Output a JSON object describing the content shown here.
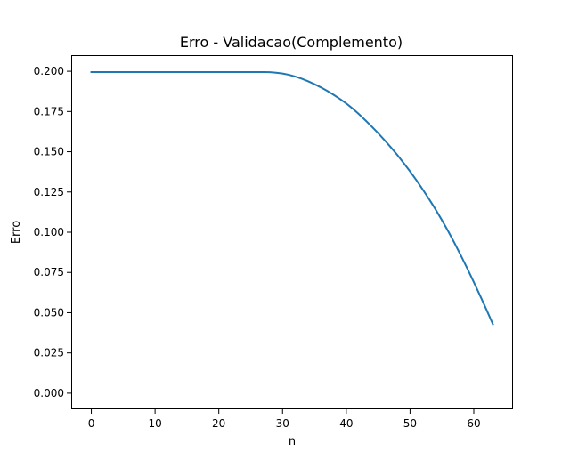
{
  "chart_data": {
    "type": "line",
    "title": "Erro - Validacao(Complemento)",
    "xlabel": "n",
    "ylabel": "Erro",
    "xlim": [
      -3.15,
      66.15
    ],
    "ylim": [
      -0.01,
      0.21
    ],
    "xticks": [
      0,
      10,
      20,
      30,
      40,
      50,
      60
    ],
    "xtick_labels": [
      "0",
      "10",
      "20",
      "30",
      "40",
      "50",
      "60"
    ],
    "yticks": [
      0.0,
      0.025,
      0.05,
      0.075,
      0.1,
      0.125,
      0.15,
      0.175,
      0.2
    ],
    "ytick_labels": [
      "0.000",
      "0.025",
      "0.050",
      "0.075",
      "0.100",
      "0.125",
      "0.150",
      "0.175",
      "0.200"
    ],
    "grid": false,
    "series": [
      {
        "color": "#1f77b4",
        "x": [
          0,
          5,
          10,
          15,
          20,
          25,
          27,
          28,
          29,
          30,
          31,
          32,
          33,
          34,
          35,
          36,
          37,
          38,
          39,
          40,
          41,
          42,
          43,
          44,
          45,
          46,
          47,
          48,
          49,
          50,
          51,
          52,
          53,
          54,
          55,
          56,
          57,
          58,
          59,
          60,
          61,
          62,
          63
        ],
        "y": [
          0.1995,
          0.1995,
          0.1995,
          0.1995,
          0.1995,
          0.1995,
          0.1995,
          0.1994,
          0.1991,
          0.1986,
          0.1978,
          0.1967,
          0.1954,
          0.1938,
          0.192,
          0.19,
          0.1878,
          0.1854,
          0.1828,
          0.18,
          0.1768,
          0.1733,
          0.1695,
          0.1656,
          0.1615,
          0.1572,
          0.1527,
          0.148,
          0.143,
          0.1378,
          0.1323,
          0.1265,
          0.1205,
          0.1142,
          0.1075,
          0.1005,
          0.0931,
          0.0853,
          0.0773,
          0.069,
          0.0605,
          0.0518,
          0.0428
        ]
      }
    ]
  }
}
